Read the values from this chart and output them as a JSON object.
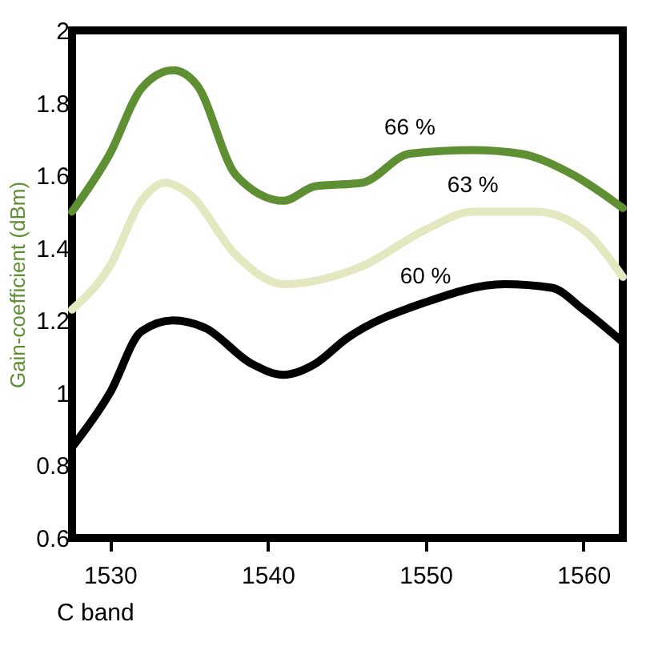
{
  "chart_data": {
    "type": "line",
    "xlabel": "C band",
    "ylabel": "Gain-coefficient (dBm)",
    "xlim": [
      1527.6,
      1562.5
    ],
    "ylim": [
      0.6,
      2
    ],
    "xticks": [
      1530,
      1540,
      1550,
      1560
    ],
    "yticks": [
      0.6,
      0.8,
      1,
      1.2,
      1.4,
      1.6,
      1.8,
      2
    ],
    "marker": "none",
    "line_style": "solid",
    "series": [
      {
        "name": "66 %",
        "color": "#5e8f32",
        "x": [
          1527.6,
          1530,
          1532,
          1534,
          1535.5,
          1538,
          1541,
          1543,
          1546,
          1549,
          1553,
          1556,
          1559,
          1562.5
        ],
        "values": [
          1.5,
          1.66,
          1.84,
          1.89,
          1.85,
          1.6,
          1.53,
          1.57,
          1.58,
          1.66,
          1.67,
          1.66,
          1.61,
          1.51
        ]
      },
      {
        "name": "63 %",
        "color": "#e3e8c0",
        "x": [
          1527.6,
          1530,
          1532,
          1533.5,
          1535,
          1538,
          1541,
          1546,
          1550,
          1553,
          1557,
          1560,
          1562.5
        ],
        "values": [
          1.23,
          1.35,
          1.53,
          1.58,
          1.55,
          1.38,
          1.3,
          1.35,
          1.45,
          1.5,
          1.5,
          1.45,
          1.32
        ]
      },
      {
        "name": "60 %",
        "color": "#000000",
        "x": [
          1527.6,
          1530,
          1532,
          1534,
          1536,
          1539,
          1541,
          1543,
          1545,
          1550,
          1555,
          1558,
          1560,
          1562.5
        ],
        "values": [
          0.85,
          1.0,
          1.17,
          1.2,
          1.18,
          1.08,
          1.05,
          1.08,
          1.15,
          1.25,
          1.3,
          1.29,
          1.23,
          1.14
        ]
      }
    ]
  }
}
